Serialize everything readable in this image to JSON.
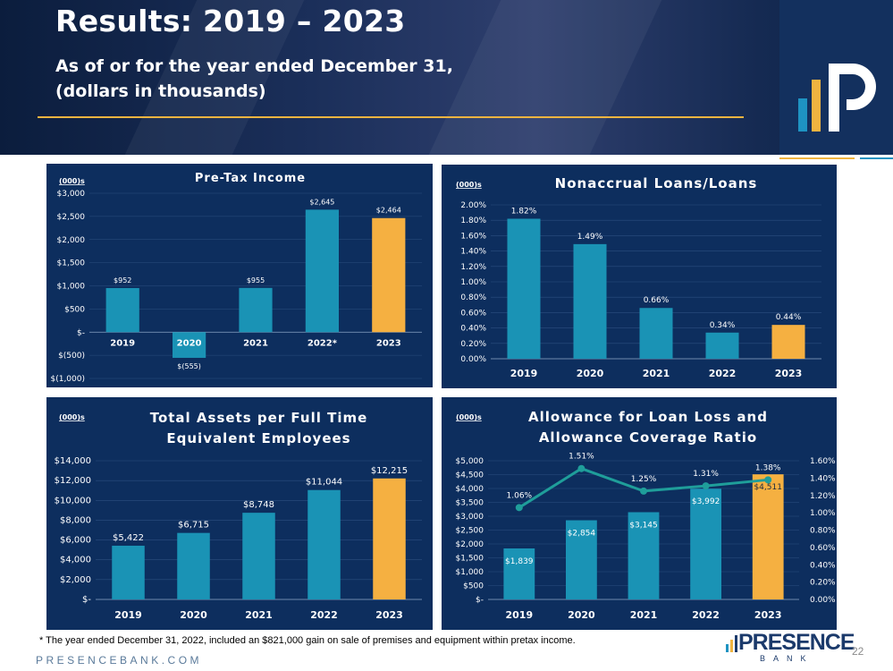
{
  "header": {
    "title": "Results: 2019 – 2023",
    "subtitle_line1": "As of or for the year ended December 31,",
    "subtitle_line2": "(dollars in thousands)"
  },
  "colors": {
    "bar": "#1a93b5",
    "highlight": "#f5b041",
    "panel": "#0d2e5e",
    "line": "#1f9e9a"
  },
  "chart_data": [
    {
      "type": "bar",
      "title": "Pre-Tax Income",
      "units_note": "(000)s",
      "categories": [
        "2019",
        "2020",
        "2021",
        "2022*",
        "2023"
      ],
      "values": [
        952,
        -555,
        955,
        2645,
        2464
      ],
      "value_labels": [
        "$952",
        "$(555)",
        "$955",
        "$2,645",
        "$2,464"
      ],
      "ylim": [
        -1000,
        3000
      ],
      "yticks": [
        3000,
        2500,
        2000,
        1500,
        1000,
        500,
        0,
        -500,
        -1000
      ],
      "ytick_labels": [
        "$3,000",
        "$2,500",
        "$2,000",
        "$1,500",
        "$1,000",
        "$500",
        "$-",
        "$(500)",
        "$(1,000)"
      ],
      "highlight_index": 4
    },
    {
      "type": "bar",
      "title": "Nonaccrual Loans/Loans",
      "units_note": "(000)s",
      "categories": [
        "2019",
        "2020",
        "2021",
        "2022",
        "2023"
      ],
      "values": [
        1.82,
        1.49,
        0.66,
        0.34,
        0.44
      ],
      "value_labels": [
        "1.82%",
        "1.49%",
        "0.66%",
        "0.34%",
        "0.44%"
      ],
      "ylim": [
        0,
        2
      ],
      "yticks": [
        2,
        1.8,
        1.6,
        1.4,
        1.2,
        1,
        0.8,
        0.6,
        0.4,
        0.2,
        0
      ],
      "ytick_labels": [
        "2.00%",
        "1.80%",
        "1.60%",
        "1.40%",
        "1.20%",
        "1.00%",
        "0.80%",
        "0.60%",
        "0.40%",
        "0.20%",
        "0.00%"
      ],
      "highlight_index": 4
    },
    {
      "type": "bar",
      "title_lines": [
        "Total Assets per Full Time",
        "Equivalent Employees"
      ],
      "units_note": "(000)s",
      "categories": [
        "2019",
        "2020",
        "2021",
        "2022",
        "2023"
      ],
      "values": [
        5422,
        6715,
        8748,
        11044,
        12215
      ],
      "value_labels": [
        "$5,422",
        "$6,715",
        "$8,748",
        "$11,044",
        "$12,215"
      ],
      "ylim": [
        0,
        14000
      ],
      "yticks": [
        14000,
        12000,
        10000,
        8000,
        6000,
        4000,
        2000,
        0
      ],
      "ytick_labels": [
        "$14,000",
        "$12,000",
        "$10,000",
        "$8,000",
        "$6,000",
        "$4,000",
        "$2,000",
        "$-"
      ],
      "highlight_index": 4
    },
    {
      "type": "bar",
      "title_lines": [
        "Allowance for Loan Loss and",
        "Allowance Coverage Ratio"
      ],
      "units_note": "(000)s",
      "categories": [
        "2019",
        "2020",
        "2021",
        "2022",
        "2023"
      ],
      "values": [
        1839,
        2854,
        3145,
        3992,
        4511
      ],
      "value_labels": [
        "$1,839",
        "$2,854",
        "$3,145",
        "$3,992",
        "$4,511"
      ],
      "ylim": [
        0,
        5000
      ],
      "yticks": [
        5000,
        4500,
        4000,
        3500,
        3000,
        2500,
        2000,
        1500,
        1000,
        500,
        0
      ],
      "ytick_labels": [
        "$5,000",
        "$4,500",
        "$4,000",
        "$3,500",
        "$3,000",
        "$2,500",
        "$2,000",
        "$1,500",
        "$1,000",
        "$500",
        "$-"
      ],
      "highlight_index": 4,
      "line_series": {
        "type": "line",
        "values": [
          1.06,
          1.51,
          1.25,
          1.31,
          1.38
        ],
        "value_labels": [
          "1.06%",
          "1.51%",
          "1.25%",
          "1.31%",
          "1.38%"
        ],
        "ylim": [
          0,
          1.6
        ],
        "yticks": [
          1.6,
          1.4,
          1.2,
          1,
          0.8,
          0.6,
          0.4,
          0.2,
          0
        ],
        "ytick_labels": [
          "1.60%",
          "1.40%",
          "1.20%",
          "1.00%",
          "0.80%",
          "0.60%",
          "0.40%",
          "0.20%",
          "0.00%"
        ]
      }
    }
  ],
  "footer": {
    "footnote": "* The year ended December 31, 2022,  included an $821,000 gain on sale of premises and equipment within pretax income.",
    "website": "PRESENCEBANK.COM",
    "brand_name": "PRESENCE",
    "brand_sub": "BANK",
    "page_number": "22"
  }
}
